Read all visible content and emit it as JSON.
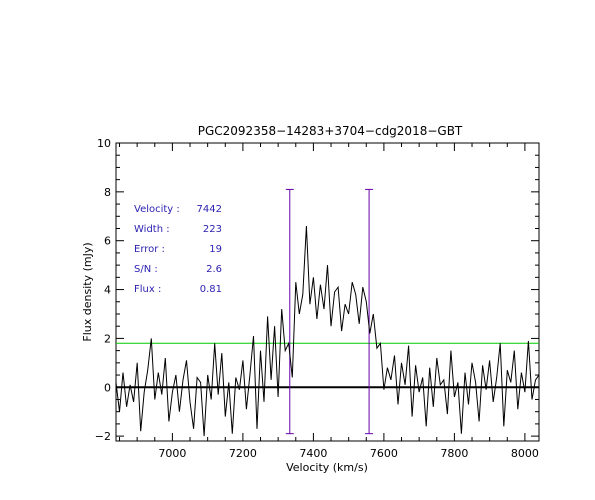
{
  "chart_data": {
    "type": "line",
    "title": "PGC2092358−14283+3704−cdg2018−GBT",
    "xlabel": "Velocity (km/s)",
    "ylabel": "Flux density (mJy)",
    "xlim": [
      6840,
      8040
    ],
    "ylim": [
      -2.2,
      10
    ],
    "x_ticks": [
      7000,
      7200,
      7400,
      7600,
      7800,
      8000
    ],
    "x_tick_labels": [
      "7000",
      "7200",
      "7400",
      "7600",
      "7800",
      "8000"
    ],
    "y_ticks": [
      -2,
      0,
      2,
      4,
      6,
      8,
      10
    ],
    "y_tick_labels": [
      "−2",
      "0",
      "2",
      "4",
      "6",
      "8",
      "10"
    ],
    "grid": false,
    "series": [
      {
        "color": "#000000",
        "x": [
          6840,
          6850,
          6860,
          6870,
          6880,
          6890,
          6900,
          6910,
          6920,
          6930,
          6940,
          6950,
          6960,
          6970,
          6980,
          6990,
          7000,
          7010,
          7020,
          7030,
          7040,
          7050,
          7060,
          7070,
          7080,
          7090,
          7100,
          7110,
          7120,
          7130,
          7140,
          7150,
          7160,
          7170,
          7180,
          7190,
          7200,
          7210,
          7220,
          7230,
          7240,
          7250,
          7260,
          7270,
          7280,
          7290,
          7300,
          7310,
          7320,
          7330,
          7340,
          7350,
          7360,
          7370,
          7380,
          7390,
          7400,
          7410,
          7420,
          7430,
          7440,
          7450,
          7460,
          7470,
          7480,
          7490,
          7500,
          7510,
          7520,
          7530,
          7540,
          7550,
          7560,
          7570,
          7580,
          7590,
          7600,
          7610,
          7620,
          7630,
          7640,
          7650,
          7660,
          7670,
          7680,
          7690,
          7700,
          7710,
          7720,
          7730,
          7740,
          7750,
          7760,
          7770,
          7780,
          7790,
          7800,
          7810,
          7820,
          7830,
          7840,
          7850,
          7860,
          7870,
          7880,
          7890,
          7900,
          7910,
          7920,
          7930,
          7940,
          7950,
          7960,
          7970,
          7980,
          7990,
          8000,
          8010,
          8020,
          8030,
          8040
        ],
        "y": [
          0.2,
          -1.0,
          0.6,
          -0.8,
          0.1,
          -0.6,
          1.0,
          -1.8,
          -0.2,
          0.7,
          2.0,
          -0.5,
          0.6,
          -0.3,
          1.2,
          -1.4,
          -0.2,
          0.5,
          -1.0,
          0.3,
          1.1,
          -0.6,
          -1.7,
          0.4,
          0.2,
          -2.0,
          0.5,
          -0.5,
          1.8,
          -0.3,
          1.4,
          -1.2,
          0.2,
          -1.9,
          0.4,
          -0.1,
          1.1,
          -0.9,
          0.5,
          2.1,
          -1.7,
          1.5,
          -0.6,
          2.9,
          0.3,
          2.5,
          -0.4,
          3.2,
          1.5,
          1.8,
          0.4,
          4.3,
          3.0,
          3.8,
          6.6,
          3.4,
          4.5,
          2.8,
          4.2,
          3.2,
          5.0,
          2.5,
          3.9,
          4.1,
          2.3,
          3.4,
          3.0,
          4.3,
          3.8,
          2.6,
          4.1,
          3.5,
          2.2,
          3.0,
          1.6,
          1.8,
          -0.1,
          0.8,
          0.3,
          1.3,
          -0.7,
          1.0,
          0.1,
          1.7,
          -1.2,
          0.9,
          -0.2,
          0.4,
          -1.6,
          0.8,
          -0.8,
          1.2,
          0.1,
          0.3,
          -1.1,
          1.5,
          -0.4,
          0.2,
          -1.9,
          0.6,
          -0.7,
          1.0,
          0.2,
          -1.4,
          0.9,
          -0.1,
          1.1,
          -0.6,
          0.4,
          1.8,
          -1.6,
          0.7,
          0.2,
          1.5,
          -0.9,
          0.6,
          -0.2,
          1.9,
          -0.5,
          0.3,
          0.5
        ]
      }
    ],
    "baseline": {
      "y": 0,
      "color": "#000000"
    },
    "rms_line": {
      "y": 1.8,
      "color": "#00cc00"
    },
    "markers": [
      {
        "x": 7333,
        "y_bottom": -1.9,
        "y_top": 8.1,
        "color": "#6600aa"
      },
      {
        "x": 7558,
        "y_bottom": -1.9,
        "y_top": 8.1,
        "color": "#6600aa"
      }
    ],
    "annotations": [
      {
        "label": "Velocity :",
        "value": "7442"
      },
      {
        "label": "Width :",
        "value": "223"
      },
      {
        "label": "Error :",
        "value": "19"
      },
      {
        "label": "S/N :",
        "value": "2.6"
      },
      {
        "label": "Flux :",
        "value": "0.81"
      }
    ],
    "annotation_color": "#2a1fb0"
  }
}
